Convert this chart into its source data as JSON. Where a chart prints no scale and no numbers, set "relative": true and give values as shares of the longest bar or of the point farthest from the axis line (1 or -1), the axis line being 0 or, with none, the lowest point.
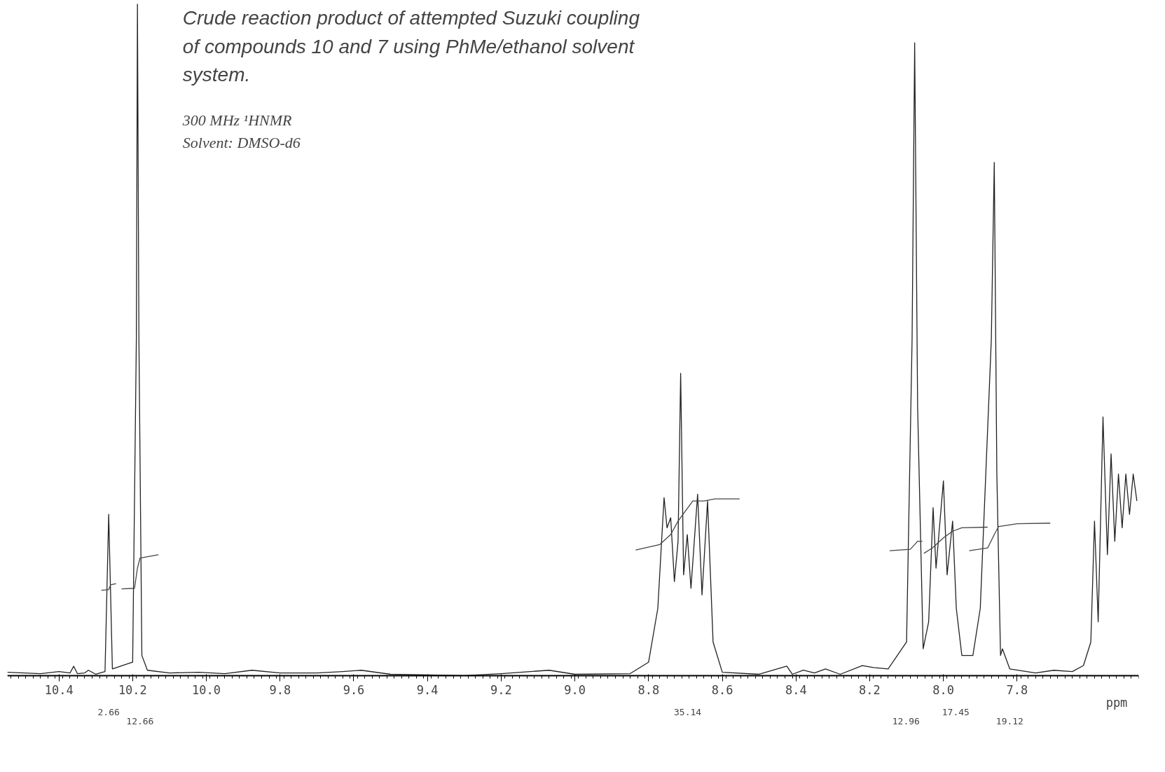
{
  "chart_data": {
    "type": "line",
    "title": "Crude reaction product of attempted Suzuki coupling of compounds 10 and 7 using PhMe/ethanol solvent system.",
    "subtitle": "300 MHz ¹HNMR\nSolvent: DMSO-d6",
    "xlabel": "ppm",
    "relative": true,
    "xlim": [
      10.54,
      7.47
    ],
    "xticks": [
      10.4,
      10.2,
      {
        "value": 10,
        "label": "10.0"
      },
      9.8,
      9.6,
      9.4,
      9.2,
      {
        "value": 9,
        "label": "9.0"
      },
      8.8,
      8.6,
      8.4,
      8.2,
      {
        "value": 8,
        "label": "8.0"
      },
      7.8
    ],
    "grid": false,
    "series": [
      {
        "color": "#222222",
        "x": [
          10.54,
          10.45,
          10.4,
          10.37,
          10.36,
          10.35,
          10.33,
          10.32,
          10.3,
          10.275,
          10.265,
          10.255,
          10.2,
          10.19,
          10.187,
          10.183,
          10.175,
          10.16,
          10.1,
          10.02,
          9.95,
          9.876,
          9.8,
          9.7,
          9.63,
          9.58,
          9.5,
          9.3,
          9.2,
          9.07,
          9.0,
          8.85,
          8.8,
          8.775,
          8.758,
          8.75,
          8.74,
          8.73,
          8.72,
          8.713,
          8.705,
          8.695,
          8.685,
          8.667,
          8.655,
          8.64,
          8.625,
          8.6,
          8.5,
          8.425,
          8.41,
          8.38,
          8.35,
          8.32,
          8.28,
          8.22,
          8.19,
          8.15,
          8.1,
          8.085,
          8.078,
          8.07,
          8.055,
          8.04,
          8.028,
          8.02,
          8.0,
          7.99,
          7.975,
          7.965,
          7.95,
          7.92,
          7.9,
          7.87,
          7.862,
          7.855,
          7.845,
          7.84,
          7.82,
          7.75,
          7.7,
          7.65,
          7.62,
          7.6,
          7.59,
          7.58,
          7.567,
          7.555,
          7.545,
          7.535,
          7.525,
          7.515,
          7.505,
          7.495,
          7.485,
          7.475
        ],
        "values": [
          0.005,
          0.003,
          0.006,
          0.004,
          0.014,
          0.003,
          0.004,
          0.008,
          0.002,
          0.006,
          0.24,
          0.01,
          0.02,
          0.5,
          1,
          0.5,
          0.03,
          0.008,
          0.004,
          0.005,
          0.003,
          0.008,
          0.004,
          0.004,
          0.006,
          0.008,
          0.002,
          0,
          0.003,
          0.008,
          0.002,
          0.003,
          0.02,
          0.1,
          0.265,
          0.22,
          0.235,
          0.14,
          0.2,
          0.45,
          0.15,
          0.21,
          0.13,
          0.27,
          0.12,
          0.26,
          0.05,
          0.005,
          0.002,
          0.014,
          0.002,
          0.008,
          0.004,
          0.01,
          0.002,
          0.015,
          0.012,
          0.01,
          0.05,
          0.5,
          0.942,
          0.4,
          0.04,
          0.08,
          0.25,
          0.16,
          0.29,
          0.15,
          0.23,
          0.1,
          0.03,
          0.03,
          0.1,
          0.5,
          0.764,
          0.3,
          0.03,
          0.04,
          0.01,
          0.004,
          0.008,
          0.006,
          0.015,
          0.05,
          0.23,
          0.08,
          0.385,
          0.18,
          0.33,
          0.2,
          0.3,
          0.22,
          0.3,
          0.24,
          0.3,
          0.26
        ]
      },
      {
        "color": "#444444",
        "x": [
          10.285,
          10.265,
          10.26,
          10.245
        ],
        "values": [
          0.127,
          0.128,
          0.135,
          0.137
        ]
      },
      {
        "color": "#444444",
        "x": [
          10.23,
          10.195,
          10.187,
          10.18,
          10.13
        ],
        "values": [
          0.129,
          0.13,
          0.16,
          0.175,
          0.18
        ]
      },
      {
        "color": "#444444",
        "x": [
          8.835,
          8.77,
          8.74,
          8.72,
          8.7,
          8.68,
          8.65,
          8.62,
          8.553
        ],
        "values": [
          0.187,
          0.195,
          0.21,
          0.23,
          0.245,
          0.26,
          0.26,
          0.263,
          0.263
        ]
      },
      {
        "color": "#444444",
        "x": [
          8.146,
          8.09,
          8.078,
          8.07,
          8.057
        ],
        "values": [
          0.186,
          0.188,
          0.195,
          0.2,
          0.2
        ]
      },
      {
        "color": "#444444",
        "x": [
          8.053,
          8.03,
          8.0,
          7.975,
          7.95,
          7.88
        ],
        "values": [
          0.182,
          0.19,
          0.205,
          0.215,
          0.22,
          0.221
        ]
      },
      {
        "color": "#444444",
        "x": [
          7.93,
          7.88,
          7.862,
          7.85,
          7.8,
          7.71
        ],
        "values": [
          0.186,
          0.19,
          0.21,
          0.222,
          0.226,
          0.227
        ]
      }
    ],
    "annotations": [
      "2.66",
      "12.66",
      "35.14",
      "12.96",
      "17.45",
      "19.12"
    ]
  }
}
